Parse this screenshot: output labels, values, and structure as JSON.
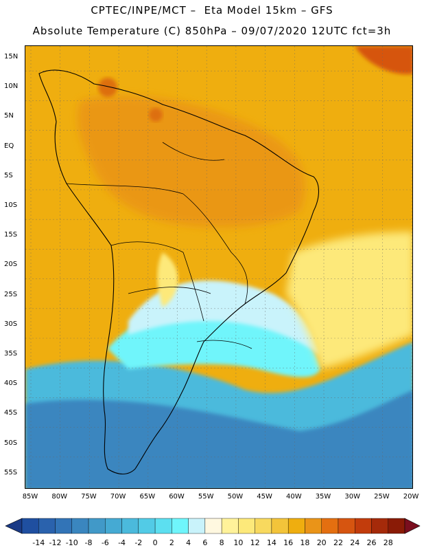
{
  "title_line1": "CPTEC/INPE/MCT –  Eta Model 15km – GFS",
  "title_line2": "Absolute Temperature (C) 850hPa – 09/07/2020 12UTC fct=3h",
  "lat_labels": [
    "15N",
    "10N",
    "5N",
    "EQ",
    "5S",
    "10S",
    "15S",
    "20S",
    "25S",
    "30S",
    "35S",
    "40S",
    "45S",
    "50S",
    "55S"
  ],
  "lon_labels": [
    "85W",
    "80W",
    "75W",
    "70W",
    "65W",
    "60W",
    "55W",
    "50W",
    "45W",
    "40W",
    "35W",
    "30W",
    "25W",
    "20W"
  ],
  "colorbar": {
    "labels": [
      "-14",
      "-12",
      "-10",
      "-8",
      "-6",
      "-4",
      "-2",
      "0",
      "2",
      "4",
      "6",
      "8",
      "10",
      "12",
      "14",
      "16",
      "18",
      "20",
      "22",
      "24",
      "26",
      "28"
    ],
    "colors": [
      "#1f4fa0",
      "#2a62ad",
      "#3274b7",
      "#3a86bf",
      "#4199c8",
      "#45aad3",
      "#4bbadc",
      "#52cbe6",
      "#5cdff0",
      "#6ff5fb",
      "#c9f3fb",
      "#fff8e0",
      "#fff29a",
      "#fde97a",
      "#f8d95e",
      "#f3c43a",
      "#efae0f",
      "#ea9418",
      "#e46f10",
      "#d65510",
      "#c23c0c",
      "#a52a0a",
      "#8a1b06"
    ],
    "under_color": "#1a3a86",
    "over_color": "#7a0e1e"
  },
  "map": {
    "region": "South America",
    "colors": {
      "ocean_cold": "#3a86bf",
      "ocean_mid": "#4bbadc",
      "front": "#6ff5fb",
      "cool": "#c9f3fb",
      "mild": "#fde97a",
      "warm": "#f3c43a",
      "hot": "#efae0f",
      "hotter": "#ea9418",
      "tropical_hot": "#d65510",
      "coast": "#000000"
    }
  }
}
